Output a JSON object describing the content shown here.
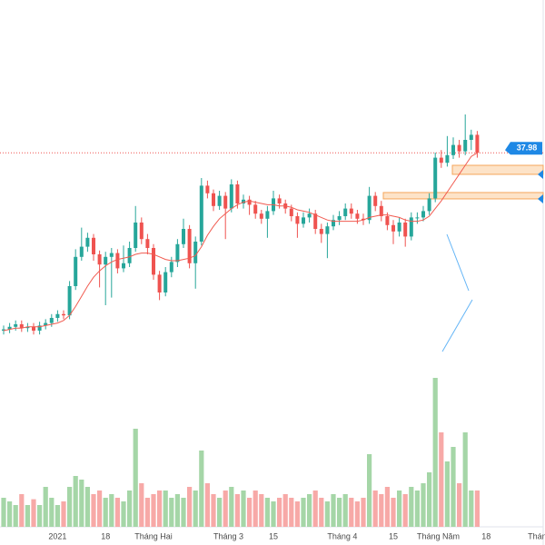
{
  "chart_data": {
    "type": "candlestick",
    "open": [
      24.0,
      24.1,
      24.3,
      24.5,
      24.2,
      24.3,
      24.0,
      24.4,
      24.6,
      25.0,
      25.3,
      25.2,
      27.5,
      29.8,
      30.6,
      31.3,
      30.0,
      29.2,
      29.8,
      30.1,
      28.9,
      29.3,
      30.5,
      32.5,
      31.2,
      30.5,
      28.4,
      27.0,
      28.6,
      29.4,
      30.8,
      32.0,
      29.3,
      31.0,
      35.4,
      34.8,
      33.8,
      34.6,
      33.6,
      35.5,
      34.0,
      34.3,
      33.9,
      33.2,
      32.8,
      33.4,
      34.4,
      34.0,
      33.6,
      33.0,
      32.4,
      32.9,
      33.2,
      32.0,
      31.6,
      32.2,
      32.7,
      33.0,
      33.6,
      33.2,
      32.8,
      32.7,
      34.6,
      33.8,
      33.0,
      32.3,
      31.8,
      32.5,
      31.4,
      32.9,
      32.9,
      33.4,
      34.4,
      37.6,
      37.2,
      37.8,
      38.6,
      38.1,
      39.0,
      39.4
    ],
    "high": [
      24.4,
      24.6,
      24.8,
      24.8,
      24.6,
      24.6,
      24.7,
      24.9,
      25.3,
      25.6,
      25.6,
      27.9,
      30.4,
      32.1,
      31.7,
      31.6,
      30.3,
      30.2,
      30.5,
      30.4,
      30.7,
      31.0,
      33.8,
      32.9,
      31.6,
      30.8,
      28.7,
      29.0,
      29.8,
      31.2,
      32.8,
      32.3,
      31.4,
      36.0,
      35.8,
      35.1,
      35.0,
      34.9,
      35.9,
      35.8,
      34.7,
      34.6,
      34.2,
      33.5,
      33.8,
      35.0,
      34.7,
      34.3,
      33.9,
      33.3,
      33.3,
      33.6,
      33.5,
      32.4,
      32.5,
      33.1,
      33.4,
      34.0,
      34.0,
      33.5,
      33.2,
      35.3,
      34.9,
      34.2,
      33.3,
      32.7,
      32.9,
      32.8,
      33.3,
      33.3,
      33.8,
      34.8,
      38.0,
      38.2,
      39.3,
      39.2,
      39.0,
      41.0,
      39.8,
      39.7
    ],
    "low": [
      23.7,
      23.8,
      24.0,
      23.9,
      23.9,
      23.7,
      23.7,
      24.1,
      24.3,
      24.7,
      24.9,
      24.9,
      27.2,
      29.5,
      30.2,
      29.5,
      27.4,
      26.0,
      26.6,
      28.5,
      28.6,
      29.0,
      30.2,
      30.8,
      30.0,
      28.0,
      26.4,
      26.7,
      28.2,
      29.0,
      30.5,
      28.9,
      27.3,
      30.7,
      34.4,
      33.4,
      33.5,
      31.2,
      33.3,
      33.6,
      33.6,
      33.1,
      32.8,
      32.4,
      31.3,
      33.1,
      33.6,
      33.2,
      32.6,
      31.3,
      32.1,
      32.5,
      31.6,
      30.9,
      29.7,
      31.9,
      32.3,
      32.7,
      32.8,
      32.4,
      32.3,
      32.4,
      33.4,
      32.6,
      31.9,
      30.8,
      31.4,
      30.6,
      31.1,
      32.4,
      32.6,
      33.1,
      34.1,
      36.8,
      36.9,
      37.5,
      37.6,
      37.8,
      38.2,
      37.6
    ],
    "close": [
      24.1,
      24.3,
      24.5,
      24.2,
      24.3,
      24.0,
      24.4,
      24.6,
      25.0,
      25.3,
      25.2,
      27.5,
      29.8,
      30.6,
      31.3,
      30.0,
      29.2,
      29.8,
      30.1,
      28.9,
      29.3,
      30.5,
      32.5,
      31.2,
      30.5,
      28.4,
      27.0,
      28.6,
      29.4,
      30.8,
      32.0,
      29.3,
      31.0,
      35.4,
      34.8,
      33.8,
      34.6,
      33.6,
      35.5,
      34.0,
      34.3,
      33.9,
      33.2,
      32.8,
      33.4,
      34.4,
      34.0,
      33.6,
      33.0,
      32.4,
      32.9,
      33.2,
      32.0,
      31.6,
      32.2,
      32.7,
      33.0,
      33.6,
      33.2,
      32.8,
      32.7,
      34.6,
      33.8,
      33.0,
      32.3,
      31.8,
      32.5,
      31.4,
      32.9,
      32.9,
      33.4,
      34.4,
      37.6,
      37.2,
      37.8,
      38.6,
      38.1,
      39.0,
      39.4,
      37.98
    ],
    "ma": [
      24.0,
      24.1,
      24.2,
      24.2,
      24.3,
      24.3,
      24.3,
      24.4,
      24.5,
      24.6,
      24.8,
      25.2,
      25.9,
      26.7,
      27.5,
      28.2,
      28.7,
      29.1,
      29.4,
      29.6,
      29.7,
      29.8,
      30.0,
      30.1,
      30.1,
      30.0,
      29.8,
      29.6,
      29.5,
      29.5,
      29.6,
      29.7,
      29.9,
      30.6,
      31.5,
      32.2,
      32.8,
      33.2,
      33.6,
      33.9,
      34.1,
      34.2,
      34.1,
      34.0,
      33.9,
      33.9,
      33.8,
      33.8,
      33.7,
      33.5,
      33.4,
      33.3,
      33.1,
      32.9,
      32.7,
      32.6,
      32.6,
      32.6,
      32.6,
      32.6,
      32.7,
      32.9,
      33.0,
      33.1,
      33.1,
      33.0,
      32.9,
      32.7,
      32.6,
      32.6,
      32.7,
      33.0,
      33.6,
      34.2,
      34.9,
      35.6,
      36.3,
      37.0,
      37.7,
      37.98
    ],
    "volume": [
      40,
      35,
      30,
      45,
      30,
      38,
      30,
      55,
      40,
      30,
      35,
      55,
      70,
      65,
      55,
      45,
      50,
      40,
      45,
      40,
      35,
      50,
      135,
      60,
      40,
      45,
      50,
      50,
      40,
      45,
      40,
      55,
      50,
      105,
      60,
      45,
      40,
      50,
      55,
      45,
      50,
      40,
      50,
      45,
      40,
      35,
      40,
      45,
      40,
      35,
      40,
      45,
      50,
      40,
      35,
      45,
      40,
      45,
      40,
      35,
      40,
      100,
      50,
      45,
      55,
      40,
      50,
      45,
      55,
      50,
      60,
      75,
      205,
      130,
      90,
      110,
      60,
      130,
      50,
      50
    ],
    "ylim": [
      20,
      50
    ],
    "vlim": [
      0,
      220
    ],
    "zones": [
      {
        "low": 36.29,
        "high": 37.0
      },
      {
        "low": 34.36,
        "high": 34.86
      }
    ],
    "xticks": [
      {
        "value": 9,
        "label": "2021"
      },
      {
        "value": 17,
        "label": "18"
      },
      {
        "value": 25,
        "label": "Tháng Hai"
      },
      {
        "value": 37.5,
        "label": "Tháng 3"
      },
      {
        "value": 45,
        "label": "15"
      },
      {
        "value": 56.5,
        "label": "Tháng 4"
      },
      {
        "value": 65,
        "label": "15"
      },
      {
        "value": 72.5,
        "label": "Tháng Năm"
      },
      {
        "value": 80.5,
        "label": "18"
      },
      {
        "value": 89,
        "label": "Thán"
      }
    ],
    "up_color": "#26a69a",
    "down_color": "#ef5350",
    "up_volume_color": "#a5d6a7",
    "down_volume_color": "#f7a9a7",
    "ma_color": "#f15b50",
    "last_color": "#1e88e5"
  }
}
